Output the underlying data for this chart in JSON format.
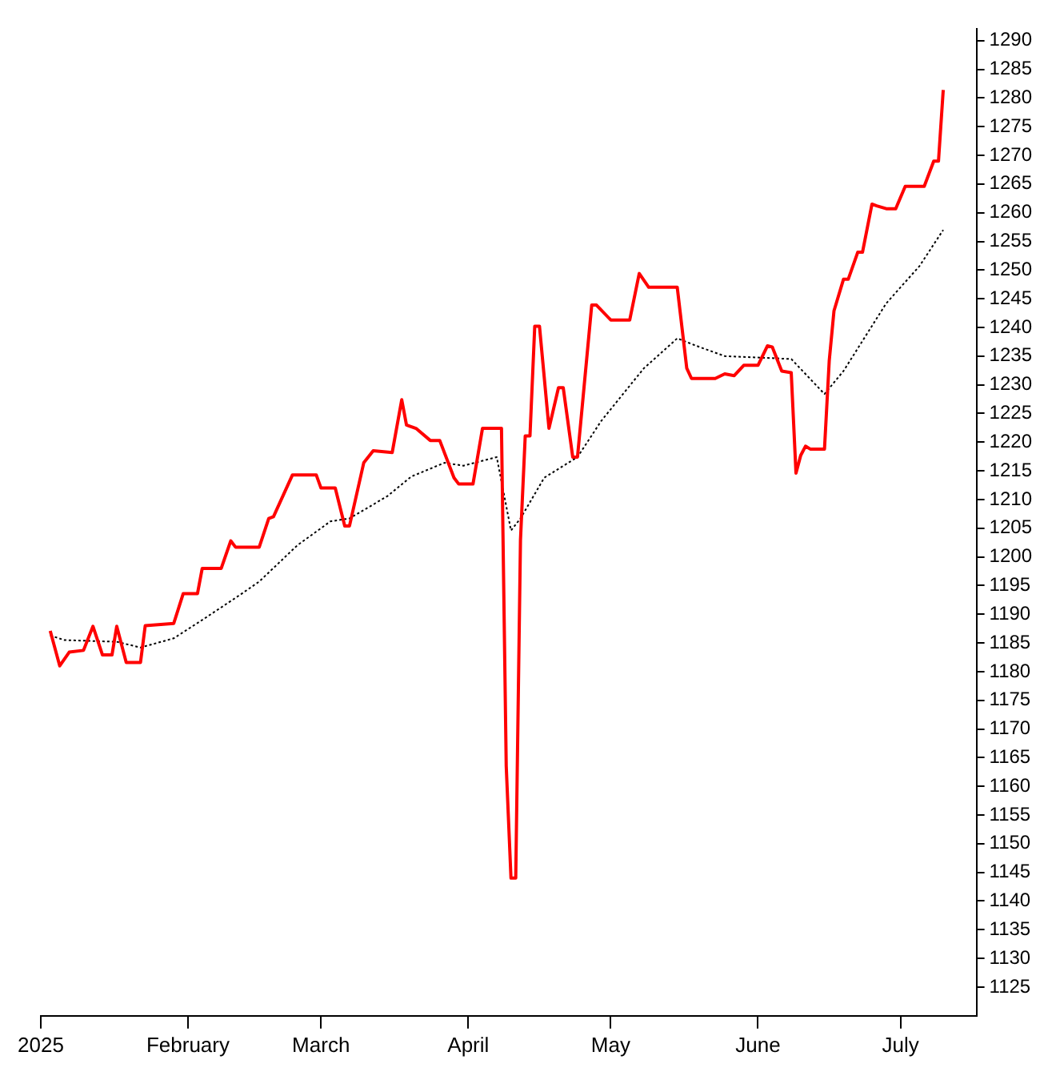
{
  "chart_data": {
    "type": "line",
    "xlim": [
      "2025-01-01",
      "2025-07-17"
    ],
    "xticks": [
      {
        "value": "2025-01-01",
        "label": "2025"
      },
      {
        "value": "2025-02-01",
        "label": "February"
      },
      {
        "value": "2025-03-01",
        "label": "March"
      },
      {
        "value": "2025-04-01",
        "label": "April"
      },
      {
        "value": "2025-05-01",
        "label": "May"
      },
      {
        "value": "2025-06-01",
        "label": "June"
      },
      {
        "value": "2025-07-01",
        "label": "July"
      }
    ],
    "ylim": [
      1120,
      1292
    ],
    "yticks": [
      1125,
      1130,
      1135,
      1140,
      1145,
      1150,
      1155,
      1160,
      1165,
      1170,
      1175,
      1180,
      1185,
      1190,
      1195,
      1200,
      1205,
      1210,
      1215,
      1220,
      1225,
      1230,
      1235,
      1240,
      1245,
      1250,
      1255,
      1260,
      1265,
      1270,
      1275,
      1280,
      1285,
      1290
    ],
    "grid": false,
    "legend": false,
    "series": [
      {
        "color": "#ff0000",
        "line_style": "solid",
        "x": [
          "2025-01-03",
          "2025-01-05",
          "2025-01-07",
          "2025-01-10",
          "2025-01-12",
          "2025-01-14",
          "2025-01-16",
          "2025-01-17",
          "2025-01-19",
          "2025-01-22",
          "2025-01-23",
          "2025-01-29",
          "2025-01-31",
          "2025-02-03",
          "2025-02-04",
          "2025-02-08",
          "2025-02-10",
          "2025-02-11",
          "2025-02-16",
          "2025-02-18",
          "2025-02-19",
          "2025-02-23",
          "2025-02-28",
          "2025-03-01",
          "2025-03-04",
          "2025-03-06",
          "2025-03-07",
          "2025-03-10",
          "2025-03-12",
          "2025-03-16",
          "2025-03-18",
          "2025-03-19",
          "2025-03-21",
          "2025-03-24",
          "2025-03-26",
          "2025-03-29",
          "2025-03-30",
          "2025-04-02",
          "2025-04-04",
          "2025-04-08",
          "2025-04-09",
          "2025-04-10",
          "2025-04-11",
          "2025-04-12",
          "2025-04-13",
          "2025-04-14",
          "2025-04-15",
          "2025-04-16",
          "2025-04-18",
          "2025-04-20",
          "2025-04-21",
          "2025-04-23",
          "2025-04-24",
          "2025-04-27",
          "2025-04-28",
          "2025-05-01",
          "2025-05-05",
          "2025-05-07",
          "2025-05-09",
          "2025-05-15",
          "2025-05-17",
          "2025-05-18",
          "2025-05-23",
          "2025-05-25",
          "2025-05-27",
          "2025-05-29",
          "2025-06-01",
          "2025-06-03",
          "2025-06-04",
          "2025-06-06",
          "2025-06-08",
          "2025-06-09",
          "2025-06-10",
          "2025-06-11",
          "2025-06-12",
          "2025-06-15",
          "2025-06-16",
          "2025-06-17",
          "2025-06-19",
          "2025-06-20",
          "2025-06-22",
          "2025-06-23",
          "2025-06-25",
          "2025-06-26",
          "2025-06-28",
          "2025-06-30",
          "2025-07-02",
          "2025-07-06",
          "2025-07-08",
          "2025-07-09",
          "2025-07-10"
        ],
        "values": [
          1187.1,
          1181,
          1183.4,
          1183.7,
          1187.9,
          1182.9,
          1182.9,
          1187.9,
          1181.6,
          1181.6,
          1188,
          1188.4,
          1193.6,
          1193.6,
          1198,
          1198,
          1202.8,
          1201.7,
          1201.7,
          1206.7,
          1207,
          1214.3,
          1214.3,
          1212,
          1212,
          1205.4,
          1205.4,
          1216.4,
          1218.5,
          1218.2,
          1227.4,
          1223,
          1222.4,
          1220.3,
          1220.3,
          1213.8,
          1212.7,
          1212.7,
          1222.4,
          1222.4,
          1163.5,
          1144,
          1144,
          1203,
          1221.1,
          1221.1,
          1240.2,
          1240.2,
          1222.4,
          1229.5,
          1229.5,
          1217.4,
          1217.4,
          1243.9,
          1243.9,
          1241.3,
          1241.3,
          1249.4,
          1247,
          1247,
          1232.9,
          1231.1,
          1231.1,
          1231.9,
          1231.6,
          1233.4,
          1233.4,
          1236.8,
          1236.6,
          1232.4,
          1232.1,
          1214.6,
          1217.7,
          1219.3,
          1218.8,
          1218.8,
          1234.2,
          1242.9,
          1248.4,
          1248.4,
          1253.1,
          1253.1,
          1261.5,
          1261.2,
          1260.7,
          1260.7,
          1264.6,
          1264.6,
          1269,
          1269,
          1281.4
        ]
      },
      {
        "color": "#000000",
        "line_style": "dotted",
        "x": [
          "2025-01-03",
          "2025-01-06",
          "2025-01-17",
          "2025-01-22",
          "2025-01-29",
          "2025-02-04",
          "2025-02-12",
          "2025-02-16",
          "2025-02-24",
          "2025-03-03",
          "2025-03-07",
          "2025-03-15",
          "2025-03-20",
          "2025-03-27",
          "2025-03-31",
          "2025-04-07",
          "2025-04-10",
          "2025-04-12",
          "2025-04-17",
          "2025-04-24",
          "2025-04-29",
          "2025-05-08",
          "2025-05-15",
          "2025-05-19",
          "2025-05-25",
          "2025-06-08",
          "2025-06-15",
          "2025-06-19",
          "2025-06-28",
          "2025-07-05",
          "2025-07-10"
        ],
        "values": [
          1186.3,
          1185.5,
          1185.2,
          1184.2,
          1185.8,
          1189,
          1193.4,
          1195.7,
          1202,
          1206.2,
          1206.7,
          1210.6,
          1214,
          1216.4,
          1215.9,
          1217.4,
          1204.6,
          1206.7,
          1213.8,
          1217.4,
          1223.7,
          1232.9,
          1238.1,
          1236.8,
          1235,
          1234.5,
          1228.4,
          1232.4,
          1244.2,
          1250.7,
          1257
        ]
      }
    ]
  }
}
